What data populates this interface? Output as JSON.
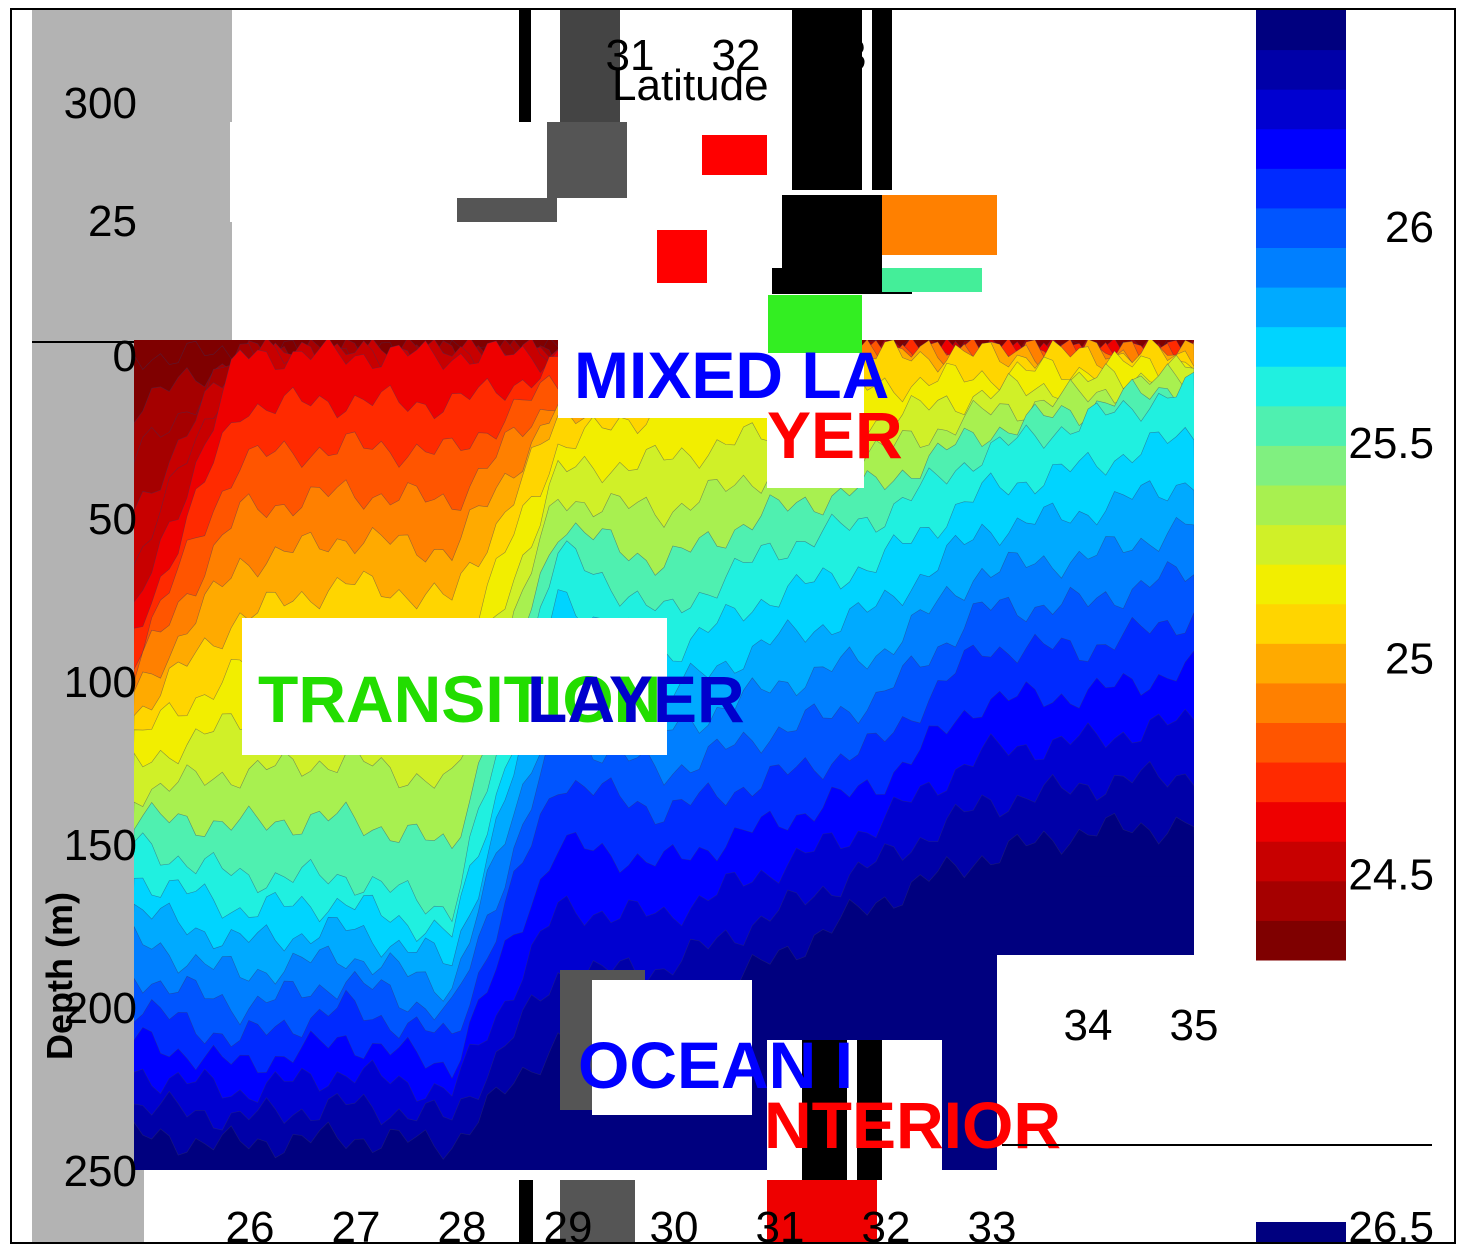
{
  "chart_data": {
    "type": "heatmap",
    "title": "",
    "xlabel": "Latitude",
    "ylabel": "Depth (m)",
    "x_ticks": [
      26,
      27,
      28,
      29,
      30,
      31,
      32,
      33,
      34,
      35
    ],
    "y_ticks": [
      0,
      50,
      100,
      150,
      200,
      250
    ],
    "xlim": [
      25,
      35
    ],
    "ylim": [
      0,
      250
    ],
    "colorbar": {
      "ticks": [
        24.5,
        25,
        25.5,
        26,
        26.5
      ],
      "range": [
        24.3,
        26.5
      ],
      "colors": [
        "#7f0000",
        "#a50000",
        "#c80000",
        "#ee0000",
        "#ff2a00",
        "#ff5500",
        "#ff8000",
        "#ffaa00",
        "#ffd500",
        "#f2ee00",
        "#d0f028",
        "#a8f050",
        "#80f080",
        "#4ff0b0",
        "#20f0e0",
        "#00d4ff",
        "#00aaff",
        "#007fff",
        "#0055ff",
        "#002aff",
        "#0000ff",
        "#0000d0",
        "#0000a8",
        "#00007f"
      ]
    },
    "density_profiles": {
      "latitudes": [
        25,
        26,
        27,
        28,
        29,
        30,
        31,
        32,
        33,
        34,
        35
      ],
      "isopycnal_depths": [
        {
          "sigma": 24.5,
          "depths": [
            80,
            0,
            0,
            0,
            0,
            0,
            0,
            0,
            0,
            0,
            0
          ]
        },
        {
          "sigma": 25.0,
          "depths": [
            110,
            80,
            70,
            75,
            20,
            0,
            0,
            0,
            0,
            0,
            0
          ]
        },
        {
          "sigma": 25.5,
          "depths": [
            150,
            160,
            160,
            170,
            60,
            80,
            60,
            50,
            30,
            20,
            10
          ]
        },
        {
          "sigma": 26.0,
          "depths": [
            200,
            210,
            200,
            210,
            130,
            140,
            130,
            120,
            90,
            90,
            80
          ]
        },
        {
          "sigma": 26.5,
          "depths": [
            250,
            250,
            250,
            250,
            230,
            220,
            200,
            180,
            170,
            160,
            160
          ]
        }
      ]
    },
    "annotations": [
      "MIXED LAYER",
      "TRANSITION LAYER",
      "OCEAN INTERIOR"
    ]
  },
  "labels": {
    "mixed_a": "MIXED LA",
    "mixed_b": "YER",
    "transition_a": "TRANSITION ",
    "transition_b": "LAYER",
    "interior_a": "OCEAN I",
    "interior_b": "NTERIOR"
  },
  "colors": {
    "deep_blue": "#0000ff",
    "navy": "#00007f",
    "mixed_label": "#0000ff",
    "transition_label": "#22dd00",
    "interior_label": "#ff0000",
    "panel_gray": "#b3b3b3"
  }
}
